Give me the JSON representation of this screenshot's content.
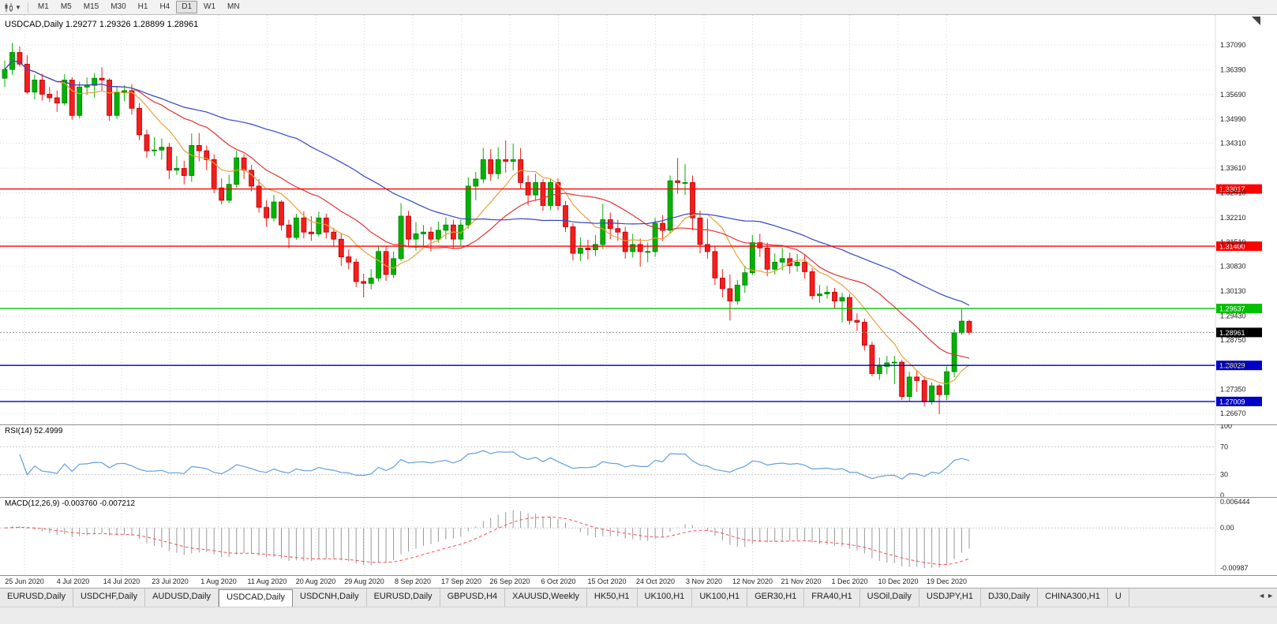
{
  "toolbar": {
    "timeframes": [
      "M1",
      "M5",
      "M15",
      "M30",
      "H1",
      "H4",
      "D1",
      "W1",
      "MN"
    ],
    "active_timeframe": "D1",
    "chart_type_icon": "candlestick-chart-icon",
    "dropdown_icon": "chevron-down-icon"
  },
  "chart": {
    "title": "USDCAD,Daily",
    "ohlc": {
      "open": "1.29277",
      "high": "1.29326",
      "low": "1.28899",
      "close": "1.28961"
    },
    "scale": {
      "p_max": 1.3794,
      "p_min": 1.2636
    },
    "price_axis_labels": [
      "1.37090",
      "1.36390",
      "1.35690",
      "1.34990",
      "1.34310",
      "1.33610",
      "1.32910",
      "1.32210",
      "1.31510",
      "1.30830",
      "1.30130",
      "1.29430",
      "1.28750",
      "1.28050",
      "1.27350",
      "1.26670"
    ],
    "date_labels": [
      "25 Jun 2020",
      "4 Jul 2020",
      "14 Jul 2020",
      "23 Jul 2020",
      "1 Aug 2020",
      "11 Aug 2020",
      "20 Aug 2020",
      "29 Aug 2020",
      "8 Sep 2020",
      "17 Sep 2020",
      "26 Sep 2020",
      "6 Oct 2020",
      "15 Oct 2020",
      "24 Oct 2020",
      "3 Nov 2020",
      "12 Nov 2020",
      "21 Nov 2020",
      "1 Dec 2020",
      "10 Dec 2020",
      "19 Dec 2020"
    ],
    "hlines": [
      {
        "price": 1.33017,
        "label": "1.33017",
        "color": "#ff0000"
      },
      {
        "price": 1.314,
        "label": "1.31400",
        "color": "#ff0000"
      },
      {
        "price": 1.29637,
        "label": "1.29637",
        "color": "#00c000"
      },
      {
        "price": 1.28029,
        "label": "1.28029",
        "color": "#0000c8"
      },
      {
        "price": 1.27009,
        "label": "1.27009",
        "color": "#0000c8"
      }
    ],
    "current_price": {
      "value": 1.28961,
      "label": "1.28961"
    }
  },
  "chart_data": {
    "type": "candlestick",
    "symbol": "USDCAD",
    "timeframe": "Daily",
    "candles": [
      [
        1.3615,
        1.3665,
        1.359,
        1.364
      ],
      [
        1.364,
        1.3715,
        1.3625,
        1.3688
      ],
      [
        1.3688,
        1.3705,
        1.3648,
        1.3655
      ],
      [
        1.3655,
        1.368,
        1.357,
        1.3576
      ],
      [
        1.3576,
        1.3625,
        1.3555,
        1.361
      ],
      [
        1.361,
        1.3628,
        1.3552,
        1.357
      ],
      [
        1.357,
        1.359,
        1.3548,
        1.356
      ],
      [
        1.356,
        1.358,
        1.352,
        1.3545
      ],
      [
        1.3545,
        1.3627,
        1.3538,
        1.361
      ],
      [
        1.361,
        1.3618,
        1.3498,
        1.351
      ],
      [
        1.351,
        1.3605,
        1.3502,
        1.359
      ],
      [
        1.359,
        1.3617,
        1.3568,
        1.3595
      ],
      [
        1.3595,
        1.363,
        1.356,
        1.3615
      ],
      [
        1.3615,
        1.3646,
        1.358,
        1.361
      ],
      [
        1.361,
        1.3615,
        1.3495,
        1.351
      ],
      [
        1.351,
        1.359,
        1.35,
        1.3575
      ],
      [
        1.3575,
        1.3595,
        1.355,
        1.358
      ],
      [
        1.358,
        1.3598,
        1.3512,
        1.353
      ],
      [
        1.353,
        1.3545,
        1.344,
        1.3455
      ],
      [
        1.3455,
        1.347,
        1.339,
        1.341
      ],
      [
        1.341,
        1.3448,
        1.3395,
        1.3412
      ],
      [
        1.3412,
        1.3445,
        1.3385,
        1.342
      ],
      [
        1.342,
        1.3432,
        1.333,
        1.3355
      ],
      [
        1.3355,
        1.3395,
        1.3342,
        1.336
      ],
      [
        1.336,
        1.3382,
        1.3315,
        1.334
      ],
      [
        1.334,
        1.3459,
        1.3322,
        1.3425
      ],
      [
        1.3425,
        1.346,
        1.338,
        1.341
      ],
      [
        1.341,
        1.3425,
        1.3355,
        1.3385
      ],
      [
        1.3385,
        1.34,
        1.329,
        1.3305
      ],
      [
        1.3305,
        1.3332,
        1.3258,
        1.327
      ],
      [
        1.327,
        1.3342,
        1.3262,
        1.3315
      ],
      [
        1.3315,
        1.341,
        1.3305,
        1.339
      ],
      [
        1.339,
        1.34,
        1.333,
        1.3355
      ],
      [
        1.3355,
        1.337,
        1.3295,
        1.331
      ],
      [
        1.331,
        1.333,
        1.3235,
        1.325
      ],
      [
        1.325,
        1.327,
        1.3195,
        1.322
      ],
      [
        1.322,
        1.3285,
        1.321,
        1.3265
      ],
      [
        1.3265,
        1.327,
        1.3185,
        1.32
      ],
      [
        1.32,
        1.3215,
        1.3135,
        1.3165
      ],
      [
        1.3165,
        1.3232,
        1.3158,
        1.322
      ],
      [
        1.322,
        1.3238,
        1.3162,
        1.318
      ],
      [
        1.318,
        1.3225,
        1.3155,
        1.3175
      ],
      [
        1.3175,
        1.3238,
        1.3168,
        1.322
      ],
      [
        1.322,
        1.3232,
        1.3162,
        1.318
      ],
      [
        1.318,
        1.3192,
        1.314,
        1.316
      ],
      [
        1.316,
        1.3178,
        1.3085,
        1.311
      ],
      [
        1.311,
        1.3132,
        1.3075,
        1.3095
      ],
      [
        1.3095,
        1.3105,
        1.3025,
        1.304
      ],
      [
        1.304,
        1.3062,
        1.2995,
        1.3035
      ],
      [
        1.3035,
        1.3075,
        1.3018,
        1.305
      ],
      [
        1.305,
        1.314,
        1.304,
        1.3125
      ],
      [
        1.3125,
        1.314,
        1.3042,
        1.306
      ],
      [
        1.306,
        1.3125,
        1.305,
        1.3105
      ],
      [
        1.3105,
        1.3262,
        1.3098,
        1.3225
      ],
      [
        1.3225,
        1.324,
        1.314,
        1.316
      ],
      [
        1.316,
        1.3208,
        1.3128,
        1.3175
      ],
      [
        1.3175,
        1.32,
        1.314,
        1.318
      ],
      [
        1.318,
        1.3195,
        1.3125,
        1.316
      ],
      [
        1.316,
        1.321,
        1.315,
        1.3185
      ],
      [
        1.3185,
        1.3222,
        1.316,
        1.32
      ],
      [
        1.32,
        1.3215,
        1.3132,
        1.316
      ],
      [
        1.316,
        1.3215,
        1.3142,
        1.32
      ],
      [
        1.32,
        1.3335,
        1.319,
        1.331
      ],
      [
        1.331,
        1.335,
        1.327,
        1.333
      ],
      [
        1.333,
        1.3418,
        1.3318,
        1.3385
      ],
      [
        1.3385,
        1.3415,
        1.3325,
        1.3345
      ],
      [
        1.3345,
        1.342,
        1.333,
        1.3385
      ],
      [
        1.3385,
        1.344,
        1.3348,
        1.338
      ],
      [
        1.338,
        1.343,
        1.3355,
        1.3385
      ],
      [
        1.3385,
        1.3418,
        1.3302,
        1.332
      ],
      [
        1.332,
        1.334,
        1.3255,
        1.3285
      ],
      [
        1.3285,
        1.3345,
        1.3268,
        1.332
      ],
      [
        1.332,
        1.333,
        1.324,
        1.3255
      ],
      [
        1.3255,
        1.333,
        1.3242,
        1.332
      ],
      [
        1.332,
        1.3332,
        1.3242,
        1.3255
      ],
      [
        1.3255,
        1.3268,
        1.318,
        1.3195
      ],
      [
        1.3195,
        1.3205,
        1.31,
        1.312
      ],
      [
        1.312,
        1.3165,
        1.3098,
        1.3135
      ],
      [
        1.3135,
        1.3158,
        1.3102,
        1.313
      ],
      [
        1.313,
        1.3172,
        1.3112,
        1.3145
      ],
      [
        1.3145,
        1.326,
        1.3132,
        1.3215
      ],
      [
        1.3215,
        1.3235,
        1.316,
        1.319
      ],
      [
        1.319,
        1.3215,
        1.3155,
        1.318
      ],
      [
        1.318,
        1.3195,
        1.3105,
        1.3125
      ],
      [
        1.3125,
        1.3175,
        1.3108,
        1.3145
      ],
      [
        1.3145,
        1.3162,
        1.3082,
        1.3125
      ],
      [
        1.3125,
        1.315,
        1.3095,
        1.3125
      ],
      [
        1.3125,
        1.322,
        1.311,
        1.3205
      ],
      [
        1.3205,
        1.3228,
        1.3155,
        1.3185
      ],
      [
        1.3185,
        1.334,
        1.3175,
        1.3325
      ],
      [
        1.3325,
        1.339,
        1.3288,
        1.332
      ],
      [
        1.332,
        1.3372,
        1.3285,
        1.332
      ],
      [
        1.332,
        1.334,
        1.3185,
        1.322
      ],
      [
        1.322,
        1.324,
        1.312,
        1.3145
      ],
      [
        1.3145,
        1.3218,
        1.3105,
        1.3125
      ],
      [
        1.3125,
        1.314,
        1.303,
        1.305
      ],
      [
        1.305,
        1.3075,
        1.2995,
        1.302
      ],
      [
        1.302,
        1.306,
        1.293,
        1.2985
      ],
      [
        1.2985,
        1.3045,
        1.2975,
        1.303
      ],
      [
        1.303,
        1.3085,
        1.3008,
        1.3065
      ],
      [
        1.3065,
        1.3172,
        1.3058,
        1.315
      ],
      [
        1.315,
        1.3175,
        1.311,
        1.3135
      ],
      [
        1.3135,
        1.315,
        1.3055,
        1.3075
      ],
      [
        1.3075,
        1.312,
        1.306,
        1.3095
      ],
      [
        1.3095,
        1.3135,
        1.3072,
        1.3105
      ],
      [
        1.3105,
        1.3122,
        1.3062,
        1.3085
      ],
      [
        1.3085,
        1.3118,
        1.3068,
        1.3095
      ],
      [
        1.3095,
        1.3115,
        1.3048,
        1.3068
      ],
      [
        1.3068,
        1.3078,
        1.299,
        1.3
      ],
      [
        1.3,
        1.303,
        1.298,
        1.3005
      ],
      [
        1.3005,
        1.3028,
        1.2992,
        1.301
      ],
      [
        1.301,
        1.3022,
        1.2965,
        1.2985
      ],
      [
        1.2985,
        1.3008,
        1.2925,
        1.2995
      ],
      [
        1.2995,
        1.3005,
        1.2918,
        1.293
      ],
      [
        1.293,
        1.295,
        1.29,
        1.2925
      ],
      [
        1.2925,
        1.2935,
        1.2845,
        1.286
      ],
      [
        1.286,
        1.287,
        1.2772,
        1.278
      ],
      [
        1.278,
        1.2825,
        1.2762,
        1.28
      ],
      [
        1.28,
        1.283,
        1.2778,
        1.281
      ],
      [
        1.281,
        1.283,
        1.275,
        1.2812
      ],
      [
        1.2812,
        1.2818,
        1.2705,
        1.2715
      ],
      [
        1.2715,
        1.2785,
        1.27,
        1.277
      ],
      [
        1.277,
        1.279,
        1.2728,
        1.276
      ],
      [
        1.276,
        1.2772,
        1.2688,
        1.27
      ],
      [
        1.27,
        1.2755,
        1.2692,
        1.2745
      ],
      [
        1.2745,
        1.275,
        1.2665,
        1.272
      ],
      [
        1.272,
        1.28,
        1.2705,
        1.2785
      ],
      [
        1.2785,
        1.2905,
        1.277,
        1.2895
      ],
      [
        1.2895,
        1.2965,
        1.289,
        1.2928
      ],
      [
        1.29277,
        1.29326,
        1.28899,
        1.28961
      ]
    ],
    "indicators": {
      "moving_averages": [
        {
          "period": 8,
          "color": "#e8a33d"
        },
        {
          "period": 18,
          "color": "#e23535"
        },
        {
          "period": 40,
          "color": "#3347c4"
        }
      ],
      "rsi": {
        "period": 14,
        "value": "52.4999",
        "levels": [
          100,
          70,
          30,
          0
        ]
      },
      "macd": {
        "fast": 12,
        "slow": 26,
        "signal": 9,
        "axis_max": 0.006444,
        "axis_min": -0.00987
      }
    }
  },
  "rsi_panel": {
    "label": "RSI(14)",
    "value": "52.4999",
    "axis_labels": [
      "100",
      "70",
      "30",
      "0"
    ]
  },
  "macd_panel": {
    "label": "MACD(12,26,9)",
    "value": "-0.003760 -0.007212",
    "axis_labels": [
      "0.006444",
      "0.00",
      "-0.00987"
    ]
  },
  "tabs": {
    "items": [
      "EURUSD,Daily",
      "USDCHF,Daily",
      "AUDUSD,Daily",
      "USDCAD,Daily",
      "USDCNH,Daily",
      "EURUSD,Daily",
      "GBPUSD,H4",
      "XAUUSD,Weekly",
      "HK50,H1",
      "UK100,H1",
      "UK100,H1",
      "GER30,H1",
      "FRA40,H1",
      "USOil,Daily",
      "USDJPY,H1",
      "DJ30,Daily",
      "CHINA300,H1",
      "U"
    ],
    "active_index": 3,
    "scroll_left_icon": "arrow-left-icon",
    "scroll_right_icon": "arrow-right-icon"
  },
  "colors": {
    "grid": "#d6d6d6",
    "candle_up": "#00b300",
    "candle_up_border": "#007d00",
    "candle_down": "#f51d1d",
    "candle_down_border": "#b80000",
    "rsi_line": "#64a0dc",
    "macd_hist": "#9a9a9a",
    "macd_signal": "#ff4d4d",
    "axis_text": "#222222",
    "current_price_bg": "#000000"
  }
}
